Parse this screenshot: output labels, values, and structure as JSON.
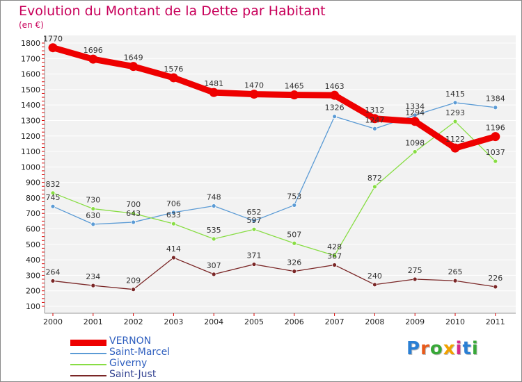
{
  "title": "Evolution du Montant de la Dette par Habitant",
  "unit_label": "(en €)",
  "logo_text": "Proxiti",
  "chart_data": {
    "type": "line",
    "title": "Evolution du Montant de la Dette par Habitant",
    "ylabel": "(en €)",
    "xlabel": "",
    "x": [
      "2000",
      "2001",
      "2002",
      "2003",
      "2004",
      "2005",
      "2006",
      "2007",
      "2008",
      "2009",
      "2010",
      "2011"
    ],
    "ylim": [
      100,
      1800
    ],
    "yticks": [
      100,
      200,
      300,
      400,
      500,
      600,
      700,
      800,
      900,
      1000,
      1100,
      1200,
      1300,
      1400,
      1500,
      1600,
      1700,
      1800
    ],
    "grid": "horizontal",
    "legend_position": "bottom-left",
    "series": [
      {
        "name": "VERNON",
        "color": "#ee0000",
        "values": [
          1770,
          1696,
          1649,
          1576,
          1481,
          1470,
          1465,
          1463,
          1312,
          1294,
          1122,
          1196
        ]
      },
      {
        "name": "Saint-Marcel",
        "color": "#5b9bd5",
        "values": [
          745,
          630,
          643,
          706,
          748,
          652,
          753,
          1326,
          1247,
          1334,
          1415,
          1384
        ]
      },
      {
        "name": "Giverny",
        "color": "#88dd44",
        "values": [
          832,
          730,
          700,
          633,
          535,
          597,
          507,
          428,
          872,
          1098,
          1293,
          1037
        ]
      },
      {
        "name": "Saint-Just",
        "color": "#7a2626",
        "values": [
          264,
          234,
          209,
          414,
          307,
          371,
          326,
          367,
          240,
          275,
          265,
          226
        ]
      }
    ]
  }
}
